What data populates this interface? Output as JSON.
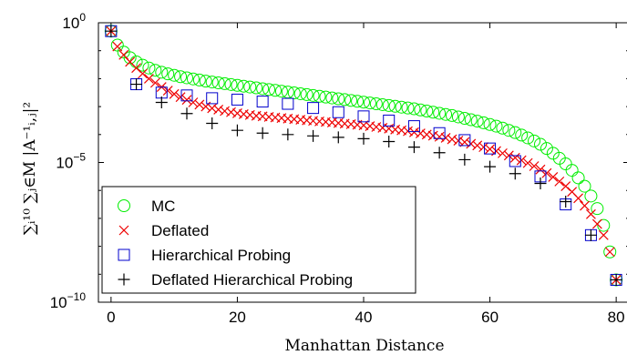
{
  "chart_data": {
    "type": "scatter",
    "xlabel": "Manhattan Distance",
    "ylabel": "∑ᵢ¹⁰ ∑ⱼ∈M |A⁻¹ᵢ,ⱼ|²",
    "xlim": [
      -2,
      82
    ],
    "ylim": [
      -10,
      0
    ],
    "y_scale": "log",
    "grid": false,
    "legend_position": "bottom-left",
    "x_ticks": [
      0,
      20,
      40,
      60,
      80
    ],
    "x_tick_labels": [
      "0",
      "20",
      "40",
      "60",
      "80"
    ],
    "y_ticks": [
      0,
      -5,
      -10
    ],
    "y_tick_labels": [
      "10",
      "10",
      "10"
    ],
    "y_tick_exponents": [
      "0",
      "−5",
      "−10"
    ],
    "series": [
      {
        "name": "MC",
        "marker": "circle",
        "color": "#00ee00",
        "x": [
          0,
          1,
          2,
          3,
          4,
          5,
          6,
          7,
          8,
          9,
          10,
          11,
          12,
          13,
          14,
          15,
          16,
          17,
          18,
          19,
          20,
          21,
          22,
          23,
          24,
          25,
          26,
          27,
          28,
          29,
          30,
          31,
          32,
          33,
          34,
          35,
          36,
          37,
          38,
          39,
          40,
          41,
          42,
          43,
          44,
          45,
          46,
          47,
          48,
          49,
          50,
          51,
          52,
          53,
          54,
          55,
          56,
          57,
          58,
          59,
          60,
          61,
          62,
          63,
          64,
          65,
          66,
          67,
          68,
          69,
          70,
          71,
          72,
          73,
          74,
          75,
          76,
          77,
          78,
          79,
          80
        ],
        "log10_y": [
          -0.3,
          -0.8,
          -1.05,
          -1.25,
          -1.4,
          -1.52,
          -1.62,
          -1.7,
          -1.77,
          -1.83,
          -1.88,
          -1.93,
          -1.97,
          -2.01,
          -2.05,
          -2.09,
          -2.12,
          -2.15,
          -2.18,
          -2.21,
          -2.24,
          -2.27,
          -2.3,
          -2.33,
          -2.36,
          -2.39,
          -2.42,
          -2.45,
          -2.48,
          -2.51,
          -2.54,
          -2.57,
          -2.6,
          -2.63,
          -2.66,
          -2.69,
          -2.72,
          -2.75,
          -2.78,
          -2.81,
          -2.84,
          -2.87,
          -2.9,
          -2.93,
          -2.96,
          -2.99,
          -3.02,
          -3.05,
          -3.08,
          -3.12,
          -3.16,
          -3.2,
          -3.24,
          -3.28,
          -3.32,
          -3.37,
          -3.42,
          -3.47,
          -3.52,
          -3.58,
          -3.64,
          -3.7,
          -3.77,
          -3.85,
          -3.93,
          -4.02,
          -4.12,
          -4.23,
          -4.35,
          -4.5,
          -4.67,
          -4.85,
          -5.05,
          -5.28,
          -5.55,
          -5.85,
          -6.2,
          -6.65,
          -7.25,
          -8.2,
          -9.2
        ]
      },
      {
        "name": "Deflated",
        "marker": "x",
        "color": "#ee0000",
        "x": [
          0,
          1,
          2,
          3,
          4,
          5,
          6,
          7,
          8,
          9,
          10,
          11,
          12,
          13,
          14,
          15,
          16,
          17,
          18,
          19,
          20,
          21,
          22,
          23,
          24,
          25,
          26,
          27,
          28,
          29,
          30,
          31,
          32,
          33,
          34,
          35,
          36,
          37,
          38,
          39,
          40,
          41,
          42,
          43,
          44,
          45,
          46,
          47,
          48,
          49,
          50,
          51,
          52,
          53,
          54,
          55,
          56,
          57,
          58,
          59,
          60,
          61,
          62,
          63,
          64,
          65,
          66,
          67,
          68,
          69,
          70,
          71,
          72,
          73,
          74,
          75,
          76,
          77,
          78,
          79,
          80
        ],
        "log10_y": [
          -0.3,
          -0.85,
          -1.15,
          -1.4,
          -1.62,
          -1.82,
          -2.0,
          -2.15,
          -2.3,
          -2.43,
          -2.55,
          -2.66,
          -2.76,
          -2.85,
          -2.93,
          -3.0,
          -3.06,
          -3.11,
          -3.16,
          -3.2,
          -3.24,
          -3.27,
          -3.3,
          -3.33,
          -3.35,
          -3.37,
          -3.39,
          -3.41,
          -3.43,
          -3.45,
          -3.47,
          -3.49,
          -3.51,
          -3.53,
          -3.55,
          -3.57,
          -3.59,
          -3.61,
          -3.63,
          -3.65,
          -3.67,
          -3.7,
          -3.73,
          -3.76,
          -3.79,
          -3.82,
          -3.85,
          -3.88,
          -3.92,
          -3.96,
          -4.0,
          -4.04,
          -4.08,
          -4.12,
          -4.17,
          -4.22,
          -4.27,
          -4.33,
          -4.39,
          -4.45,
          -4.52,
          -4.59,
          -4.67,
          -4.75,
          -4.83,
          -4.92,
          -5.02,
          -5.13,
          -5.25,
          -5.38,
          -5.52,
          -5.68,
          -5.85,
          -6.05,
          -6.28,
          -6.55,
          -6.85,
          -7.2,
          -7.6,
          -8.2,
          -9.2
        ]
      },
      {
        "name": "Hierarchical Probing",
        "marker": "square",
        "color": "#0000cc",
        "x": [
          0,
          4,
          8,
          12,
          16,
          20,
          24,
          28,
          32,
          36,
          40,
          44,
          48,
          52,
          56,
          60,
          64,
          68,
          72,
          76,
          80
        ],
        "log10_y": [
          -0.3,
          -2.2,
          -2.5,
          -2.6,
          -2.7,
          -2.75,
          -2.82,
          -2.9,
          -3.05,
          -3.2,
          -3.35,
          -3.5,
          -3.7,
          -3.95,
          -4.2,
          -4.5,
          -4.95,
          -5.5,
          -6.5,
          -7.6,
          -9.2
        ]
      },
      {
        "name": "Deflated Hierarchical Probing",
        "marker": "plus",
        "color": "#000000",
        "x": [
          0,
          4,
          8,
          12,
          16,
          20,
          24,
          28,
          32,
          36,
          40,
          44,
          48,
          52,
          56,
          60,
          64,
          68,
          72,
          76,
          80
        ],
        "log10_y": [
          -0.3,
          -2.2,
          -2.85,
          -3.25,
          -3.6,
          -3.85,
          -3.95,
          -4.0,
          -4.05,
          -4.1,
          -4.15,
          -4.25,
          -4.45,
          -4.65,
          -4.9,
          -5.15,
          -5.4,
          -5.75,
          -6.4,
          -7.6,
          -9.2
        ]
      }
    ]
  }
}
